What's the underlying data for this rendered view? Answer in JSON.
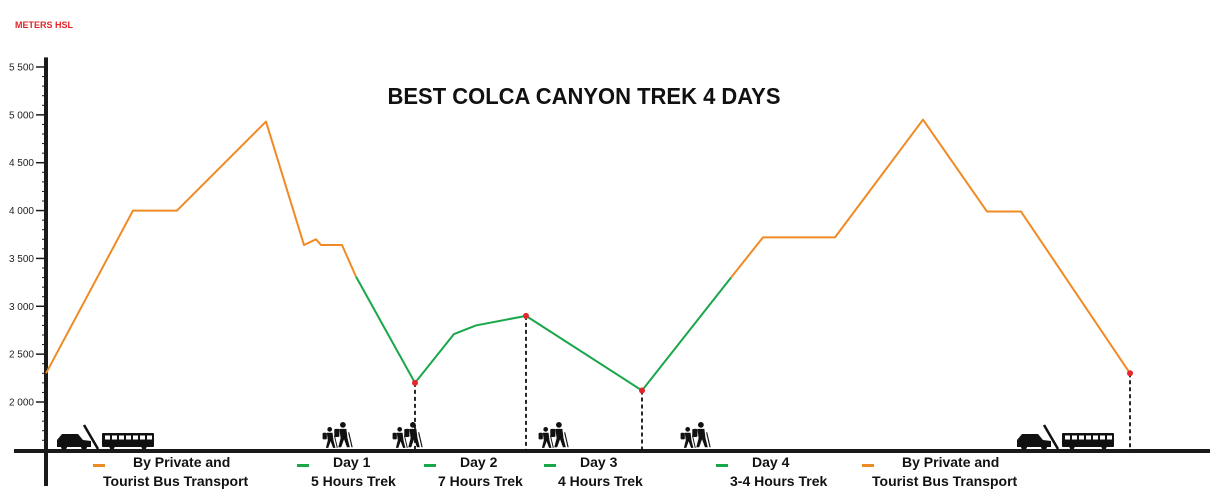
{
  "colors": {
    "transport": "#f08a24",
    "trek": "#1aa64a",
    "axis": "#1a1a1a",
    "marker": "#e3262b",
    "unit_label": "#e3262b"
  },
  "chart_data": {
    "type": "line",
    "title": "BEST COLCA CANYON TREK 4 DAYS",
    "ylabel": "METERS HSL",
    "xlabel": "",
    "ylim": [
      1500,
      5600
    ],
    "y_ticks": [
      2000,
      2500,
      3000,
      3500,
      4000,
      4500,
      5000,
      5500
    ],
    "y_tick_labels": [
      "2 000",
      "2 500",
      "3 000",
      "3 500",
      "4 000",
      "4 500",
      "5 000",
      "5 500"
    ],
    "y_minor_step": 100,
    "x_range": [
      0,
      1150
    ],
    "grid": false,
    "series": [
      {
        "kind": "transport",
        "x": [
          0,
          87,
          131,
          220,
          258,
          270,
          275,
          296,
          310
        ],
        "y": [
          2300,
          4000,
          4000,
          4930,
          3640,
          3700,
          3640,
          3640,
          3310
        ]
      },
      {
        "kind": "trek",
        "x": [
          310,
          369,
          408,
          430,
          480,
          596,
          685
        ],
        "y": [
          3310,
          2200,
          2710,
          2800,
          2900,
          2120,
          3300
        ]
      },
      {
        "kind": "transport",
        "x": [
          685,
          717,
          789,
          877,
          941,
          975,
          1084
        ],
        "y": [
          3300,
          3720,
          3720,
          4950,
          3990,
          3990,
          2300
        ]
      }
    ],
    "markers": [
      {
        "x": 369,
        "y": 2200
      },
      {
        "x": 480,
        "y": 2900
      },
      {
        "x": 596,
        "y": 2120
      },
      {
        "x": 1084,
        "y": 2300
      }
    ],
    "legend": [
      {
        "kind": "transport",
        "x": 49,
        "line1": "By Private and",
        "line2": "Tourist Bus Transport"
      },
      {
        "kind": "trek",
        "x": 253,
        "line1": "Day 1",
        "line2": "5 Hours Trek"
      },
      {
        "kind": "trek",
        "x": 380,
        "line1": "Day 2",
        "line2": "7 Hours Trek"
      },
      {
        "kind": "trek",
        "x": 500,
        "line1": "Day 3",
        "line2": "4 Hours Trek"
      },
      {
        "kind": "trek",
        "x": 672,
        "line1": "Day 4",
        "line2": "3-4 Hours Trek"
      },
      {
        "kind": "transport",
        "x": 818,
        "line1": "By Private and",
        "line2": "Tourist Bus Transport"
      }
    ],
    "icons": [
      {
        "name": "vehicles-icon",
        "x": 40
      },
      {
        "name": "hikers-icon",
        "x": 322
      },
      {
        "name": "hikers-icon",
        "x": 392
      },
      {
        "name": "hikers-icon",
        "x": 538
      },
      {
        "name": "hikers-icon",
        "x": 680
      },
      {
        "name": "vehicles-icon",
        "x": 1000
      }
    ]
  }
}
